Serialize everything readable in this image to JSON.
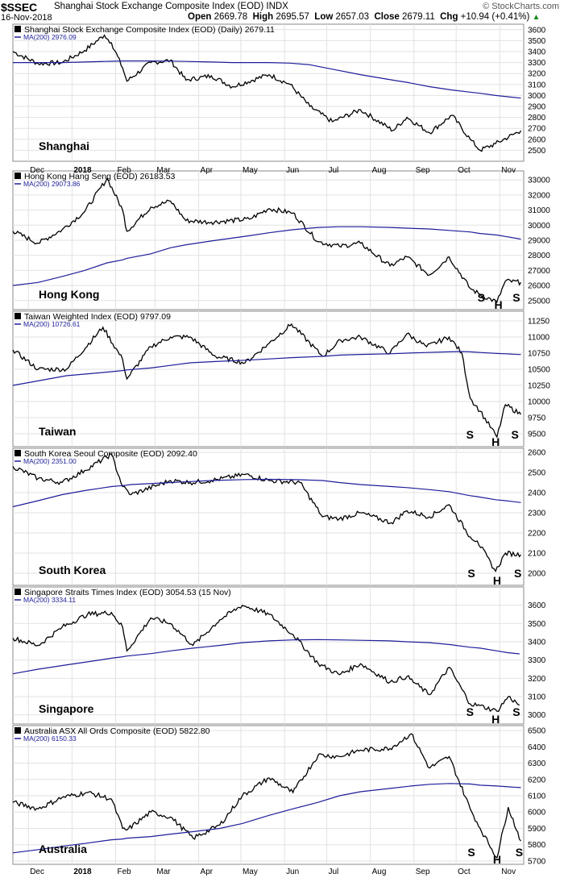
{
  "header": {
    "ticker": "$SSEC",
    "description": "Shanghai Stock Exchange Composite Index (EOD)",
    "exchange": "INDX",
    "brand": "© StockCharts.com",
    "date": "16-Nov-2018",
    "open_label": "Open",
    "open": "2669.78",
    "high_label": "High",
    "high": "2695.57",
    "low_label": "Low",
    "low": "2657.03",
    "close_label": "Close",
    "close": "2679.11",
    "chg_label": "Chg",
    "chg": "+10.94 (+0.41%)",
    "chg_arrow": "▲"
  },
  "x_ticks": [
    {
      "label": "Dec",
      "bold": false
    },
    {
      "label": "2018",
      "bold": true
    },
    {
      "label": "Feb",
      "bold": false
    },
    {
      "label": "Mar",
      "bold": false
    },
    {
      "label": "Apr",
      "bold": false
    },
    {
      "label": "May",
      "bold": false
    },
    {
      "label": "Jun",
      "bold": false
    },
    {
      "label": "Jul",
      "bold": false
    },
    {
      "label": "Aug",
      "bold": false
    },
    {
      "label": "Sep",
      "bold": false
    },
    {
      "label": "Oct",
      "bold": false
    },
    {
      "label": "Nov",
      "bold": false
    }
  ],
  "colors": {
    "price": "#000000",
    "ma": "#1d1d9a",
    "grid": "#e2e2e2",
    "frame": "#888888"
  },
  "chart_data": [
    {
      "type": "line",
      "title": "Shanghai Stock Exchange Composite Index (EOD) (Daily) 2679.11",
      "ma_label": "MA(200) 2976.09",
      "label": "Shanghai",
      "ylim": [
        2400,
        3650
      ],
      "y_ticks": [
        2500,
        2600,
        2700,
        2800,
        2900,
        3000,
        3100,
        3200,
        3300,
        3400,
        3500,
        3600
      ],
      "x": [
        "2017-11-20",
        "2017-12-08",
        "2017-12-25",
        "2018-01-10",
        "2018-01-24",
        "2018-01-29",
        "2018-02-06",
        "2018-02-09",
        "2018-02-26",
        "2018-03-12",
        "2018-03-23",
        "2018-04-10",
        "2018-04-25",
        "2018-05-21",
        "2018-06-05",
        "2018-06-19",
        "2018-07-05",
        "2018-07-25",
        "2018-08-17",
        "2018-08-27",
        "2018-09-12",
        "2018-09-28",
        "2018-10-11",
        "2018-10-18",
        "2018-10-29",
        "2018-11-16"
      ],
      "series": [
        {
          "values": [
            3400,
            3290,
            3300,
            3410,
            3550,
            3480,
            3250,
            3130,
            3300,
            3320,
            3140,
            3180,
            3080,
            3190,
            3100,
            2900,
            2760,
            2870,
            2680,
            2800,
            2660,
            2820,
            2600,
            2500,
            2560,
            2680
          ]
        },
        {
          "values": [
            3300,
            3300,
            3300,
            3305,
            3310,
            3312,
            3315,
            3315,
            3315,
            3313,
            3310,
            3305,
            3300,
            3300,
            3295,
            3280,
            3240,
            3190,
            3140,
            3120,
            3080,
            3050,
            3030,
            3020,
            3000,
            2976
          ]
        }
      ],
      "annotations": []
    },
    {
      "type": "line",
      "title": "Hong Kong Hang Seng (EOD) 26183.53",
      "ma_label": "MA(200) 29073.86",
      "label": "Hong Kong",
      "ylim": [
        24400,
        33600
      ],
      "y_ticks": [
        25000,
        26000,
        27000,
        28000,
        29000,
        30000,
        31000,
        32000,
        33000
      ],
      "x": [
        "2017-11-20",
        "2017-12-08",
        "2017-12-25",
        "2018-01-10",
        "2018-01-26",
        "2018-02-06",
        "2018-02-09",
        "2018-02-26",
        "2018-03-12",
        "2018-03-23",
        "2018-04-10",
        "2018-05-07",
        "2018-05-21",
        "2018-06-07",
        "2018-06-25",
        "2018-07-10",
        "2018-07-25",
        "2018-08-15",
        "2018-08-27",
        "2018-09-12",
        "2018-09-26",
        "2018-10-11",
        "2018-10-18",
        "2018-10-30",
        "2018-11-05",
        "2018-11-16"
      ],
      "series": [
        {
          "values": [
            29600,
            28800,
            29700,
            30900,
            33100,
            31000,
            29600,
            31200,
            31600,
            30300,
            30200,
            30400,
            31100,
            30800,
            28900,
            28600,
            28800,
            27300,
            27900,
            26700,
            27900,
            25800,
            25400,
            24900,
            26300,
            26200
          ]
        },
        {
          "values": [
            26000,
            26200,
            26600,
            27000,
            27500,
            27700,
            27800,
            28100,
            28500,
            28700,
            28950,
            29300,
            29500,
            29700,
            29850,
            29900,
            29900,
            29850,
            29800,
            29750,
            29650,
            29550,
            29450,
            29350,
            29250,
            29074
          ]
        }
      ],
      "annotations": [
        {
          "text": "S",
          "x": "2018-10-19",
          "level": "bottom"
        },
        {
          "text": "H",
          "x": "2018-10-31",
          "level": "bottom-low"
        },
        {
          "text": "S",
          "x": "2018-11-13",
          "level": "bottom"
        }
      ]
    },
    {
      "type": "line",
      "title": "Taiwan Weighted Index (EOD) 9797.09",
      "ma_label": "MA(200) 10726.61",
      "label": "Taiwan",
      "ylim": [
        9300,
        11400
      ],
      "y_ticks": [
        9500,
        9750,
        10000,
        10250,
        10500,
        10750,
        11000,
        11250
      ],
      "x": [
        "2017-11-20",
        "2017-12-08",
        "2017-12-28",
        "2018-01-23",
        "2018-02-06",
        "2018-02-09",
        "2018-02-26",
        "2018-03-12",
        "2018-03-26",
        "2018-04-13",
        "2018-05-04",
        "2018-05-21",
        "2018-06-06",
        "2018-06-28",
        "2018-07-11",
        "2018-07-25",
        "2018-08-15",
        "2018-08-27",
        "2018-09-10",
        "2018-09-26",
        "2018-10-05",
        "2018-10-11",
        "2018-10-18",
        "2018-10-30",
        "2018-11-05",
        "2018-11-16"
      ],
      "series": [
        {
          "values": [
            10800,
            10500,
            10500,
            11150,
            10650,
            10350,
            10850,
            11000,
            11000,
            10700,
            10600,
            10900,
            11200,
            10700,
            10950,
            11000,
            10750,
            11050,
            10850,
            11000,
            10750,
            10050,
            9850,
            9450,
            9950,
            9800
          ]
        },
        {
          "values": [
            10250,
            10320,
            10400,
            10450,
            10480,
            10490,
            10520,
            10560,
            10600,
            10620,
            10640,
            10660,
            10680,
            10700,
            10720,
            10730,
            10740,
            10750,
            10760,
            10770,
            10775,
            10770,
            10760,
            10745,
            10740,
            10727
          ]
        }
      ],
      "annotations": [
        {
          "text": "S",
          "x": "2018-10-11",
          "level": "bottom"
        },
        {
          "text": "H",
          "x": "2018-10-29",
          "level": "bottom-low"
        },
        {
          "text": "S",
          "x": "2018-11-12",
          "level": "bottom"
        }
      ]
    },
    {
      "type": "line",
      "title": "South Korea Seoul Composite (EOD) 2092.40",
      "ma_label": "MA(200) 2351.00",
      "label": "South Korea",
      "ylim": [
        1940,
        2620
      ],
      "y_ticks": [
        2000,
        2100,
        2200,
        2300,
        2400,
        2500,
        2600
      ],
      "x": [
        "2017-11-20",
        "2017-12-08",
        "2017-12-25",
        "2018-01-10",
        "2018-01-29",
        "2018-02-06",
        "2018-02-12",
        "2018-03-12",
        "2018-03-26",
        "2018-04-10",
        "2018-05-04",
        "2018-05-21",
        "2018-06-12",
        "2018-06-28",
        "2018-07-10",
        "2018-07-25",
        "2018-08-16",
        "2018-08-27",
        "2018-09-12",
        "2018-09-26",
        "2018-10-11",
        "2018-10-16",
        "2018-10-29",
        "2018-11-05",
        "2018-11-16"
      ],
      "series": [
        {
          "values": [
            2530,
            2470,
            2450,
            2510,
            2590,
            2430,
            2390,
            2460,
            2450,
            2460,
            2490,
            2460,
            2450,
            2280,
            2270,
            2300,
            2250,
            2310,
            2280,
            2340,
            2180,
            2160,
            2010,
            2100,
            2092
          ]
        },
        {
          "values": [
            2330,
            2360,
            2390,
            2410,
            2430,
            2435,
            2440,
            2450,
            2455,
            2460,
            2465,
            2466,
            2464,
            2460,
            2450,
            2440,
            2430,
            2425,
            2415,
            2405,
            2385,
            2380,
            2365,
            2360,
            2351
          ]
        }
      ],
      "annotations": [
        {
          "text": "S",
          "x": "2018-10-12",
          "level": "bottom"
        },
        {
          "text": "H",
          "x": "2018-10-30",
          "level": "bottom-low"
        },
        {
          "text": "S",
          "x": "2018-11-14",
          "level": "bottom"
        }
      ]
    },
    {
      "type": "line",
      "title": "Singapore Straits Times Index (EOD) 3054.53 (15 Nov)",
      "ma_label": "MA(200) 3334.11",
      "label": "Singapore",
      "ylim": [
        2950,
        3700
      ],
      "y_ticks": [
        3000,
        3100,
        3200,
        3300,
        3400,
        3500,
        3600
      ],
      "x": [
        "2017-11-20",
        "2017-12-08",
        "2017-12-25",
        "2018-01-12",
        "2018-01-29",
        "2018-02-06",
        "2018-02-09",
        "2018-02-26",
        "2018-03-12",
        "2018-03-28",
        "2018-04-16",
        "2018-05-02",
        "2018-05-21",
        "2018-06-07",
        "2018-06-25",
        "2018-07-10",
        "2018-07-25",
        "2018-08-15",
        "2018-08-27",
        "2018-09-12",
        "2018-09-26",
        "2018-10-11",
        "2018-10-18",
        "2018-10-30",
        "2018-11-07",
        "2018-11-15"
      ],
      "series": [
        {
          "values": [
            3420,
            3380,
            3480,
            3550,
            3560,
            3480,
            3350,
            3530,
            3500,
            3380,
            3520,
            3600,
            3550,
            3440,
            3280,
            3220,
            3280,
            3180,
            3210,
            3110,
            3260,
            3060,
            3050,
            3020,
            3100,
            3054
          ]
        },
        {
          "values": [
            3225,
            3250,
            3270,
            3290,
            3310,
            3318,
            3322,
            3335,
            3350,
            3365,
            3380,
            3395,
            3405,
            3410,
            3412,
            3410,
            3408,
            3405,
            3400,
            3395,
            3385,
            3370,
            3365,
            3350,
            3340,
            3334
          ]
        }
      ],
      "annotations": [
        {
          "text": "S",
          "x": "2018-10-11",
          "level": "bottom"
        },
        {
          "text": "H",
          "x": "2018-10-29",
          "level": "bottom-low"
        },
        {
          "text": "S",
          "x": "2018-11-13",
          "level": "bottom"
        }
      ]
    },
    {
      "type": "line",
      "title": "Australia ASX All Ords Composite (EOD) 5822.80",
      "ma_label": "MA(200) 6150.33",
      "label": "Australia",
      "ylim": [
        5680,
        6530
      ],
      "y_ticks": [
        5700,
        5800,
        5900,
        6000,
        6100,
        6200,
        6300,
        6400,
        6500
      ],
      "x": [
        "2017-11-20",
        "2017-12-08",
        "2017-12-25",
        "2018-01-12",
        "2018-01-29",
        "2018-02-06",
        "2018-02-09",
        "2018-02-26",
        "2018-03-12",
        "2018-03-28",
        "2018-04-16",
        "2018-05-02",
        "2018-05-21",
        "2018-06-07",
        "2018-06-25",
        "2018-07-10",
        "2018-07-25",
        "2018-08-15",
        "2018-08-30",
        "2018-09-12",
        "2018-09-26",
        "2018-10-11",
        "2018-10-18",
        "2018-10-30",
        "2018-11-07",
        "2018-11-16"
      ],
      "series": [
        {
          "values": [
            6060,
            6020,
            6090,
            6120,
            6080,
            5900,
            5890,
            6000,
            5970,
            5840,
            5920,
            6100,
            6210,
            6120,
            6350,
            6340,
            6380,
            6390,
            6480,
            6270,
            6340,
            6020,
            5900,
            5720,
            6030,
            5823
          ]
        },
        {
          "values": [
            5750,
            5770,
            5790,
            5810,
            5830,
            5835,
            5840,
            5850,
            5865,
            5880,
            5900,
            5930,
            5980,
            6020,
            6060,
            6100,
            6125,
            6145,
            6160,
            6170,
            6175,
            6172,
            6165,
            6160,
            6155,
            6150
          ]
        }
      ],
      "annotations": [
        {
          "text": "S",
          "x": "2018-10-12",
          "level": "bottom"
        },
        {
          "text": "H",
          "x": "2018-10-30",
          "level": "bottom-low"
        },
        {
          "text": "S",
          "x": "2018-11-15",
          "level": "bottom"
        }
      ]
    }
  ]
}
